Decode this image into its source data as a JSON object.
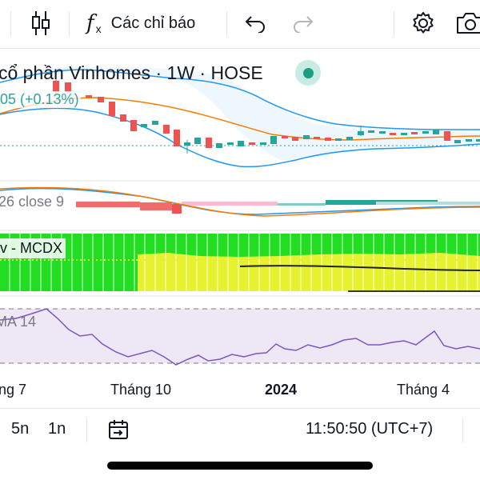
{
  "toolbar": {
    "indicators_label": "Các chỉ báo",
    "icons": [
      "candles-icon",
      "function-icon",
      "undo-icon",
      "redo-icon",
      "settings-icon",
      "camera-icon"
    ]
  },
  "chart": {
    "title": "cổ phần Vinhomes · 1W · HOSE",
    "change": "05 (+0.13%)",
    "macd_label": "26 close 9",
    "mcdx_label": "v - MCDX",
    "rsi_label": "MA 14",
    "x_labels": [
      "ng 7",
      "Tháng 10",
      "2024",
      "Tháng 4"
    ]
  },
  "bottom": {
    "interval_5n": "5n",
    "interval_1n": "1n",
    "clock": "11:50:50 (UTC+7)"
  },
  "colors": {
    "up": "#26a69a",
    "down": "#ef5350",
    "ma_orange": "#f57c00",
    "bb_blue": "#2196f3",
    "mcdx_green": "#22dd22",
    "mcdx_yellow": "#e6f230",
    "rsi_bg": "#ede7f6",
    "rsi_line": "#7e57c2"
  }
}
